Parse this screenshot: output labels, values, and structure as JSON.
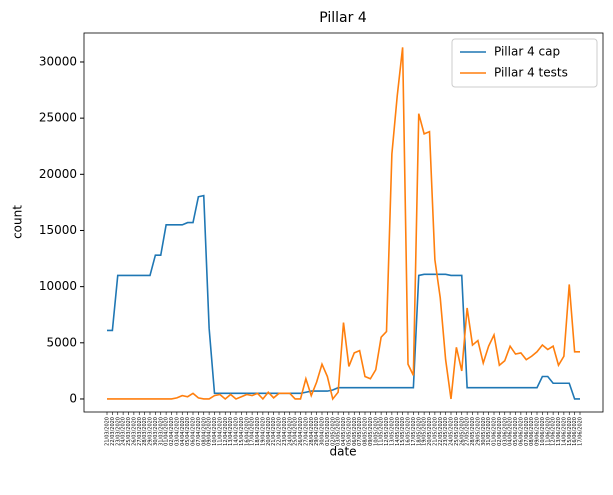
{
  "chart_data": {
    "type": "line",
    "title": "Pillar 4",
    "x_label": "date",
    "y_label": "count",
    "categories": [
      "21/03/2020",
      "22/03/2020",
      "23/03/2020",
      "24/03/2020",
      "25/03/2020",
      "26/03/2020",
      "27/03/2020",
      "28/03/2020",
      "29/03/2020",
      "30/03/2020",
      "31/03/2020",
      "01/04/2020",
      "02/04/2020",
      "03/04/2020",
      "04/04/2020",
      "05/04/2020",
      "06/04/2020",
      "07/04/2020",
      "08/04/2020",
      "09/04/2020",
      "10/04/2020",
      "11/04/2020",
      "12/04/2020",
      "13/04/2020",
      "14/04/2020",
      "15/04/2020",
      "16/04/2020",
      "17/04/2020",
      "18/04/2020",
      "19/04/2020",
      "20/04/2020",
      "21/04/2020",
      "22/04/2020",
      "23/04/2020",
      "24/04/2020",
      "25/04/2020",
      "26/04/2020",
      "27/04/2020",
      "28/04/2020",
      "29/04/2020",
      "30/04/2020",
      "01/05/2020",
      "02/05/2020",
      "03/05/2020",
      "04/05/2020",
      "05/05/2020",
      "06/05/2020",
      "07/05/2020",
      "08/05/2020",
      "09/05/2020",
      "10/05/2020",
      "11/05/2020",
      "12/05/2020",
      "13/05/2020",
      "14/05/2020",
      "15/05/2020",
      "16/05/2020",
      "17/05/2020",
      "18/05/2020",
      "19/05/2020",
      "20/05/2020",
      "21/05/2020",
      "22/05/2020",
      "23/05/2020",
      "24/05/2020",
      "25/05/2020",
      "26/05/2020",
      "27/05/2020",
      "28/05/2020",
      "29/05/2020",
      "30/05/2020",
      "31/05/2020",
      "01/06/2020",
      "02/06/2020",
      "03/06/2020",
      "04/06/2020",
      "05/06/2020",
      "06/06/2020",
      "07/06/2020",
      "08/06/2020",
      "09/06/2020",
      "10/06/2020",
      "11/06/2020",
      "12/06/2020",
      "13/06/2020",
      "14/06/2020",
      "15/06/2020",
      "16/06/2020",
      "17/06/2020"
    ],
    "series": [
      {
        "name": "Pillar 4 cap",
        "color": "#1f77b4",
        "values": [
          6100,
          6100,
          11000,
          11000,
          11000,
          11000,
          11000,
          11000,
          11000,
          12800,
          12800,
          15500,
          15500,
          15500,
          15500,
          15700,
          15700,
          18000,
          18100,
          6300,
          500,
          500,
          500,
          500,
          500,
          500,
          500,
          500,
          500,
          500,
          500,
          500,
          500,
          500,
          500,
          500,
          500,
          600,
          700,
          700,
          700,
          700,
          800,
          1000,
          1000,
          1000,
          1000,
          1000,
          1000,
          1000,
          1000,
          1000,
          1000,
          1000,
          1000,
          1000,
          1000,
          1000,
          11000,
          11100,
          11100,
          11100,
          11100,
          11100,
          11000,
          11000,
          11000,
          1000,
          1000,
          1000,
          1000,
          1000,
          1000,
          1000,
          1000,
          1000,
          1000,
          1000,
          1000,
          1000,
          1000,
          2000,
          2000,
          1400,
          1400,
          1400,
          1400,
          0,
          0
        ]
      },
      {
        "name": "Pillar 4 tests",
        "color": "#ff7f0e",
        "values": [
          0,
          0,
          0,
          0,
          0,
          0,
          0,
          0,
          0,
          0,
          0,
          0,
          0,
          100,
          300,
          200,
          500,
          100,
          0,
          0,
          300,
          400,
          0,
          400,
          0,
          200,
          400,
          300,
          500,
          0,
          600,
          100,
          500,
          500,
          500,
          0,
          0,
          1800,
          300,
          1500,
          3100,
          2000,
          0,
          600,
          6800,
          2900,
          4100,
          4300,
          2000,
          1800,
          2600,
          5500,
          6000,
          21800,
          27000,
          31300,
          3100,
          2100,
          25400,
          23600,
          23800,
          12400,
          9000,
          3500,
          0,
          4600,
          2500,
          8100,
          4800,
          5200,
          3200,
          4700,
          5700,
          3000,
          3400,
          4700,
          4000,
          4100,
          3500,
          3800,
          4200,
          4800,
          4400,
          4700,
          3000,
          3800,
          10200,
          4200,
          4200
        ]
      }
    ],
    "ylim": [
      -1160,
      32580
    ],
    "yticks": [
      0,
      5000,
      10000,
      15000,
      20000,
      25000,
      30000
    ],
    "legend": "upper right"
  }
}
